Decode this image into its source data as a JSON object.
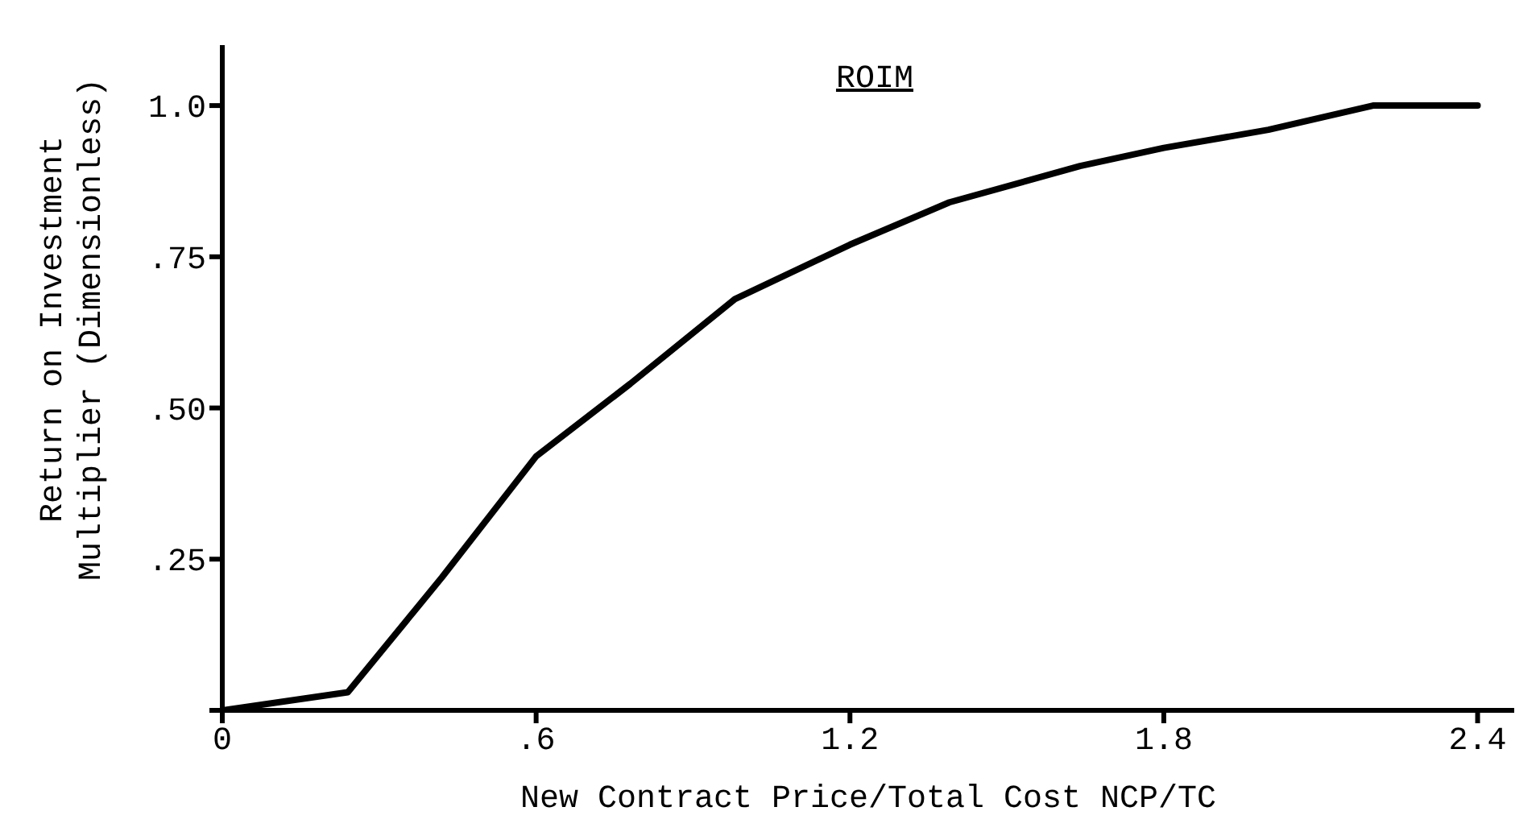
{
  "chart_data": {
    "type": "line",
    "title": "ROIM",
    "xlabel": "New Contract Price/Total Cost NCP/TC",
    "ylabel": "Return on Investment\nMultiplier (Dimensionless)",
    "x": [
      0,
      0.24,
      0.42,
      0.6,
      0.78,
      0.98,
      1.2,
      1.39,
      1.64,
      1.8,
      2.0,
      2.2,
      2.4
    ],
    "series": [
      {
        "color": "#000000",
        "values": [
          0,
          0.03,
          0.22,
          0.42,
          0.54,
          0.68,
          0.77,
          0.84,
          0.9,
          0.93,
          0.96,
          1.0,
          1.0
        ]
      }
    ],
    "xlim": [
      0,
      2.47
    ],
    "ylim": [
      0,
      1.1
    ],
    "xticks": [
      0,
      {
        "value": 0.6,
        "label": ".6"
      },
      1.2,
      1.8,
      2.4
    ],
    "yticks": [
      {
        "value": 0,
        "label": null
      },
      {
        "value": 0.25,
        "label": ".25"
      },
      {
        "value": 0.5,
        "label": ".50"
      },
      {
        "value": 0.75,
        "label": ".75"
      },
      {
        "value": 1,
        "label": "1.0"
      }
    ],
    "line_style": "solid"
  }
}
